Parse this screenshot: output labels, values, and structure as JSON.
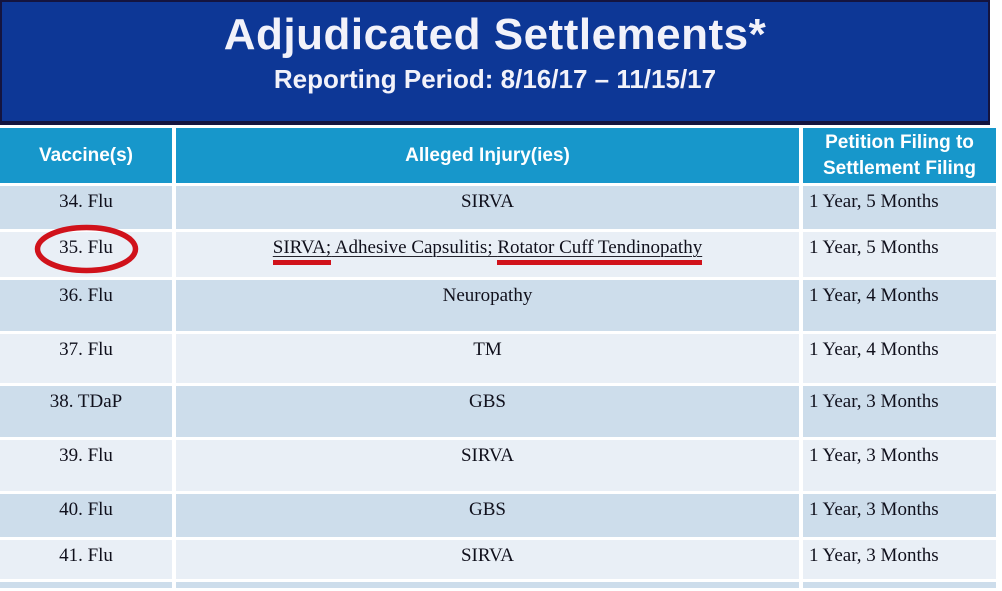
{
  "banner": {
    "title": "Adjudicated Settlements*",
    "subtitle": "Reporting Period: 8/16/17 – 11/15/17"
  },
  "table": {
    "columns": [
      {
        "label": "Vaccine(s)"
      },
      {
        "label": "Alleged Injury(ies)"
      },
      {
        "label": "Petition Filing to Settlement Filing"
      }
    ],
    "rows": [
      {
        "vaccine": "34. Flu",
        "shade": "dark",
        "injury_underlined": false,
        "circled": false,
        "injury_parts": [
          {
            "text": "SIRVA"
          }
        ],
        "duration": "1 Year, 5 Months"
      },
      {
        "vaccine": "35. Flu",
        "shade": "light",
        "injury_underlined": true,
        "circled": true,
        "injury_parts": [
          {
            "text": "SIRVA;",
            "red_underline": true
          },
          {
            "text": " Adhesive Capsulitis; "
          },
          {
            "text": "Rotator Cuff Tendinopathy",
            "red_underline": true
          }
        ],
        "duration": "1 Year, 5 Months"
      },
      {
        "vaccine": "36. Flu",
        "shade": "dark",
        "injury_underlined": false,
        "circled": false,
        "injury_parts": [
          {
            "text": "Neuropathy"
          }
        ],
        "duration": "1 Year, 4 Months"
      },
      {
        "vaccine": "37. Flu",
        "shade": "light",
        "injury_underlined": false,
        "circled": false,
        "injury_parts": [
          {
            "text": "TM"
          }
        ],
        "duration": "1 Year, 4 Months"
      },
      {
        "vaccine": "38. TDaP",
        "shade": "dark",
        "injury_underlined": false,
        "circled": false,
        "injury_parts": [
          {
            "text": "GBS"
          }
        ],
        "duration": "1 Year, 3 Months"
      },
      {
        "vaccine": "39. Flu",
        "shade": "light",
        "injury_underlined": false,
        "circled": false,
        "injury_parts": [
          {
            "text": "SIRVA"
          }
        ],
        "duration": "1 Year, 3 Months"
      },
      {
        "vaccine": "40. Flu",
        "shade": "dark",
        "injury_underlined": false,
        "circled": false,
        "injury_parts": [
          {
            "text": "GBS"
          }
        ],
        "duration": "1 Year, 3 Months"
      },
      {
        "vaccine": "41. Flu",
        "shade": "light",
        "injury_underlined": false,
        "circled": false,
        "injury_parts": [
          {
            "text": "SIRVA"
          }
        ],
        "duration": "1 Year, 3 Months"
      }
    ]
  },
  "annotations": {
    "red_color": "#d0121b",
    "circled_value": "35. Flu",
    "red_underlined_values": [
      "SIRVA;",
      "Rotator Cuff Tendinopathy"
    ]
  },
  "colors": {
    "banner_bg": "#0d3796",
    "header_bg": "#1797cb",
    "row_dark": "#cdddeb",
    "row_light": "#e9eff6"
  }
}
